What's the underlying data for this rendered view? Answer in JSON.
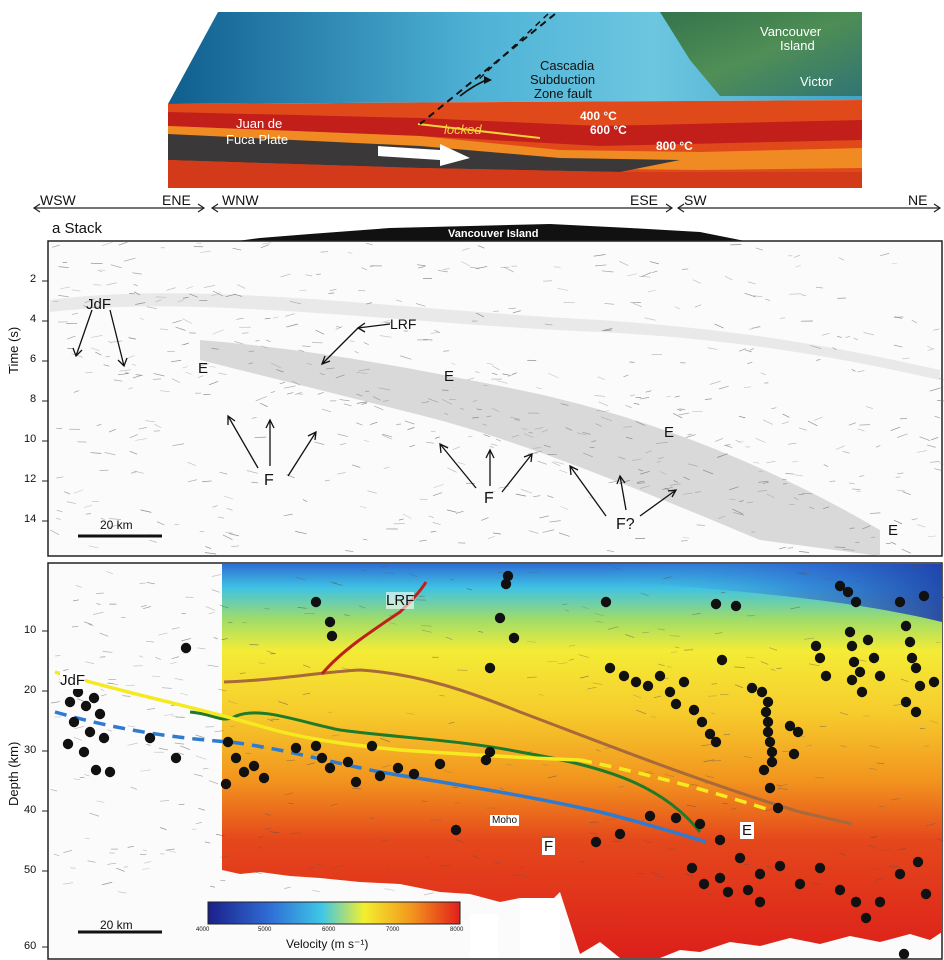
{
  "block": {
    "island_label_line1": "Vancouver",
    "island_label_line2": "Island",
    "city_label": "Victor",
    "fault_label_line1": "Cascadia",
    "fault_label_line2": "Subduction",
    "fault_label_line3": "Zone fault",
    "plate_label_line1": "Juan de",
    "plate_label_line2": "Fuca Plate",
    "locked_label": "locked",
    "temp_400": "400 °C",
    "temp_600": "600 °C",
    "temp_800": "800 °C"
  },
  "directions": {
    "wsw": "WSW",
    "ene": "ENE",
    "wnw": "WNW",
    "ese": "ESE",
    "sw": "SW",
    "ne": "NE"
  },
  "panel_a": {
    "panel_label": "a  Stack",
    "island_profile_label": "Vancouver Island",
    "y_axis_title": "Time (s)",
    "y_ticks": [
      "2",
      "4",
      "6",
      "8",
      "10",
      "12",
      "14"
    ],
    "annotations": {
      "jdf": "JdF",
      "lrf": "LRF",
      "e1": "E",
      "e2": "E",
      "e3": "E",
      "e4": "E",
      "f1": "F",
      "f2": "F",
      "f3": "F?"
    },
    "scale_bar": "20 km"
  },
  "panel_b": {
    "y_axis_title": "Depth (km)",
    "y_ticks": [
      "10",
      "20",
      "30",
      "40",
      "50",
      "60"
    ],
    "annotations": {
      "lrf": "LRF",
      "jdf": "JdF",
      "f": "F",
      "e": "E",
      "moho": "Moho"
    },
    "scale_bar": "20 km",
    "colorbar": {
      "title": "Velocity (m s⁻¹)",
      "ticks": [
        "4000",
        "5000",
        "6000",
        "7000",
        "8000"
      ],
      "colors": [
        "#1b1f8a",
        "#2f6fd6",
        "#3ec6e6",
        "#f3ef2f",
        "#f39a1d",
        "#e1201c"
      ]
    }
  }
}
